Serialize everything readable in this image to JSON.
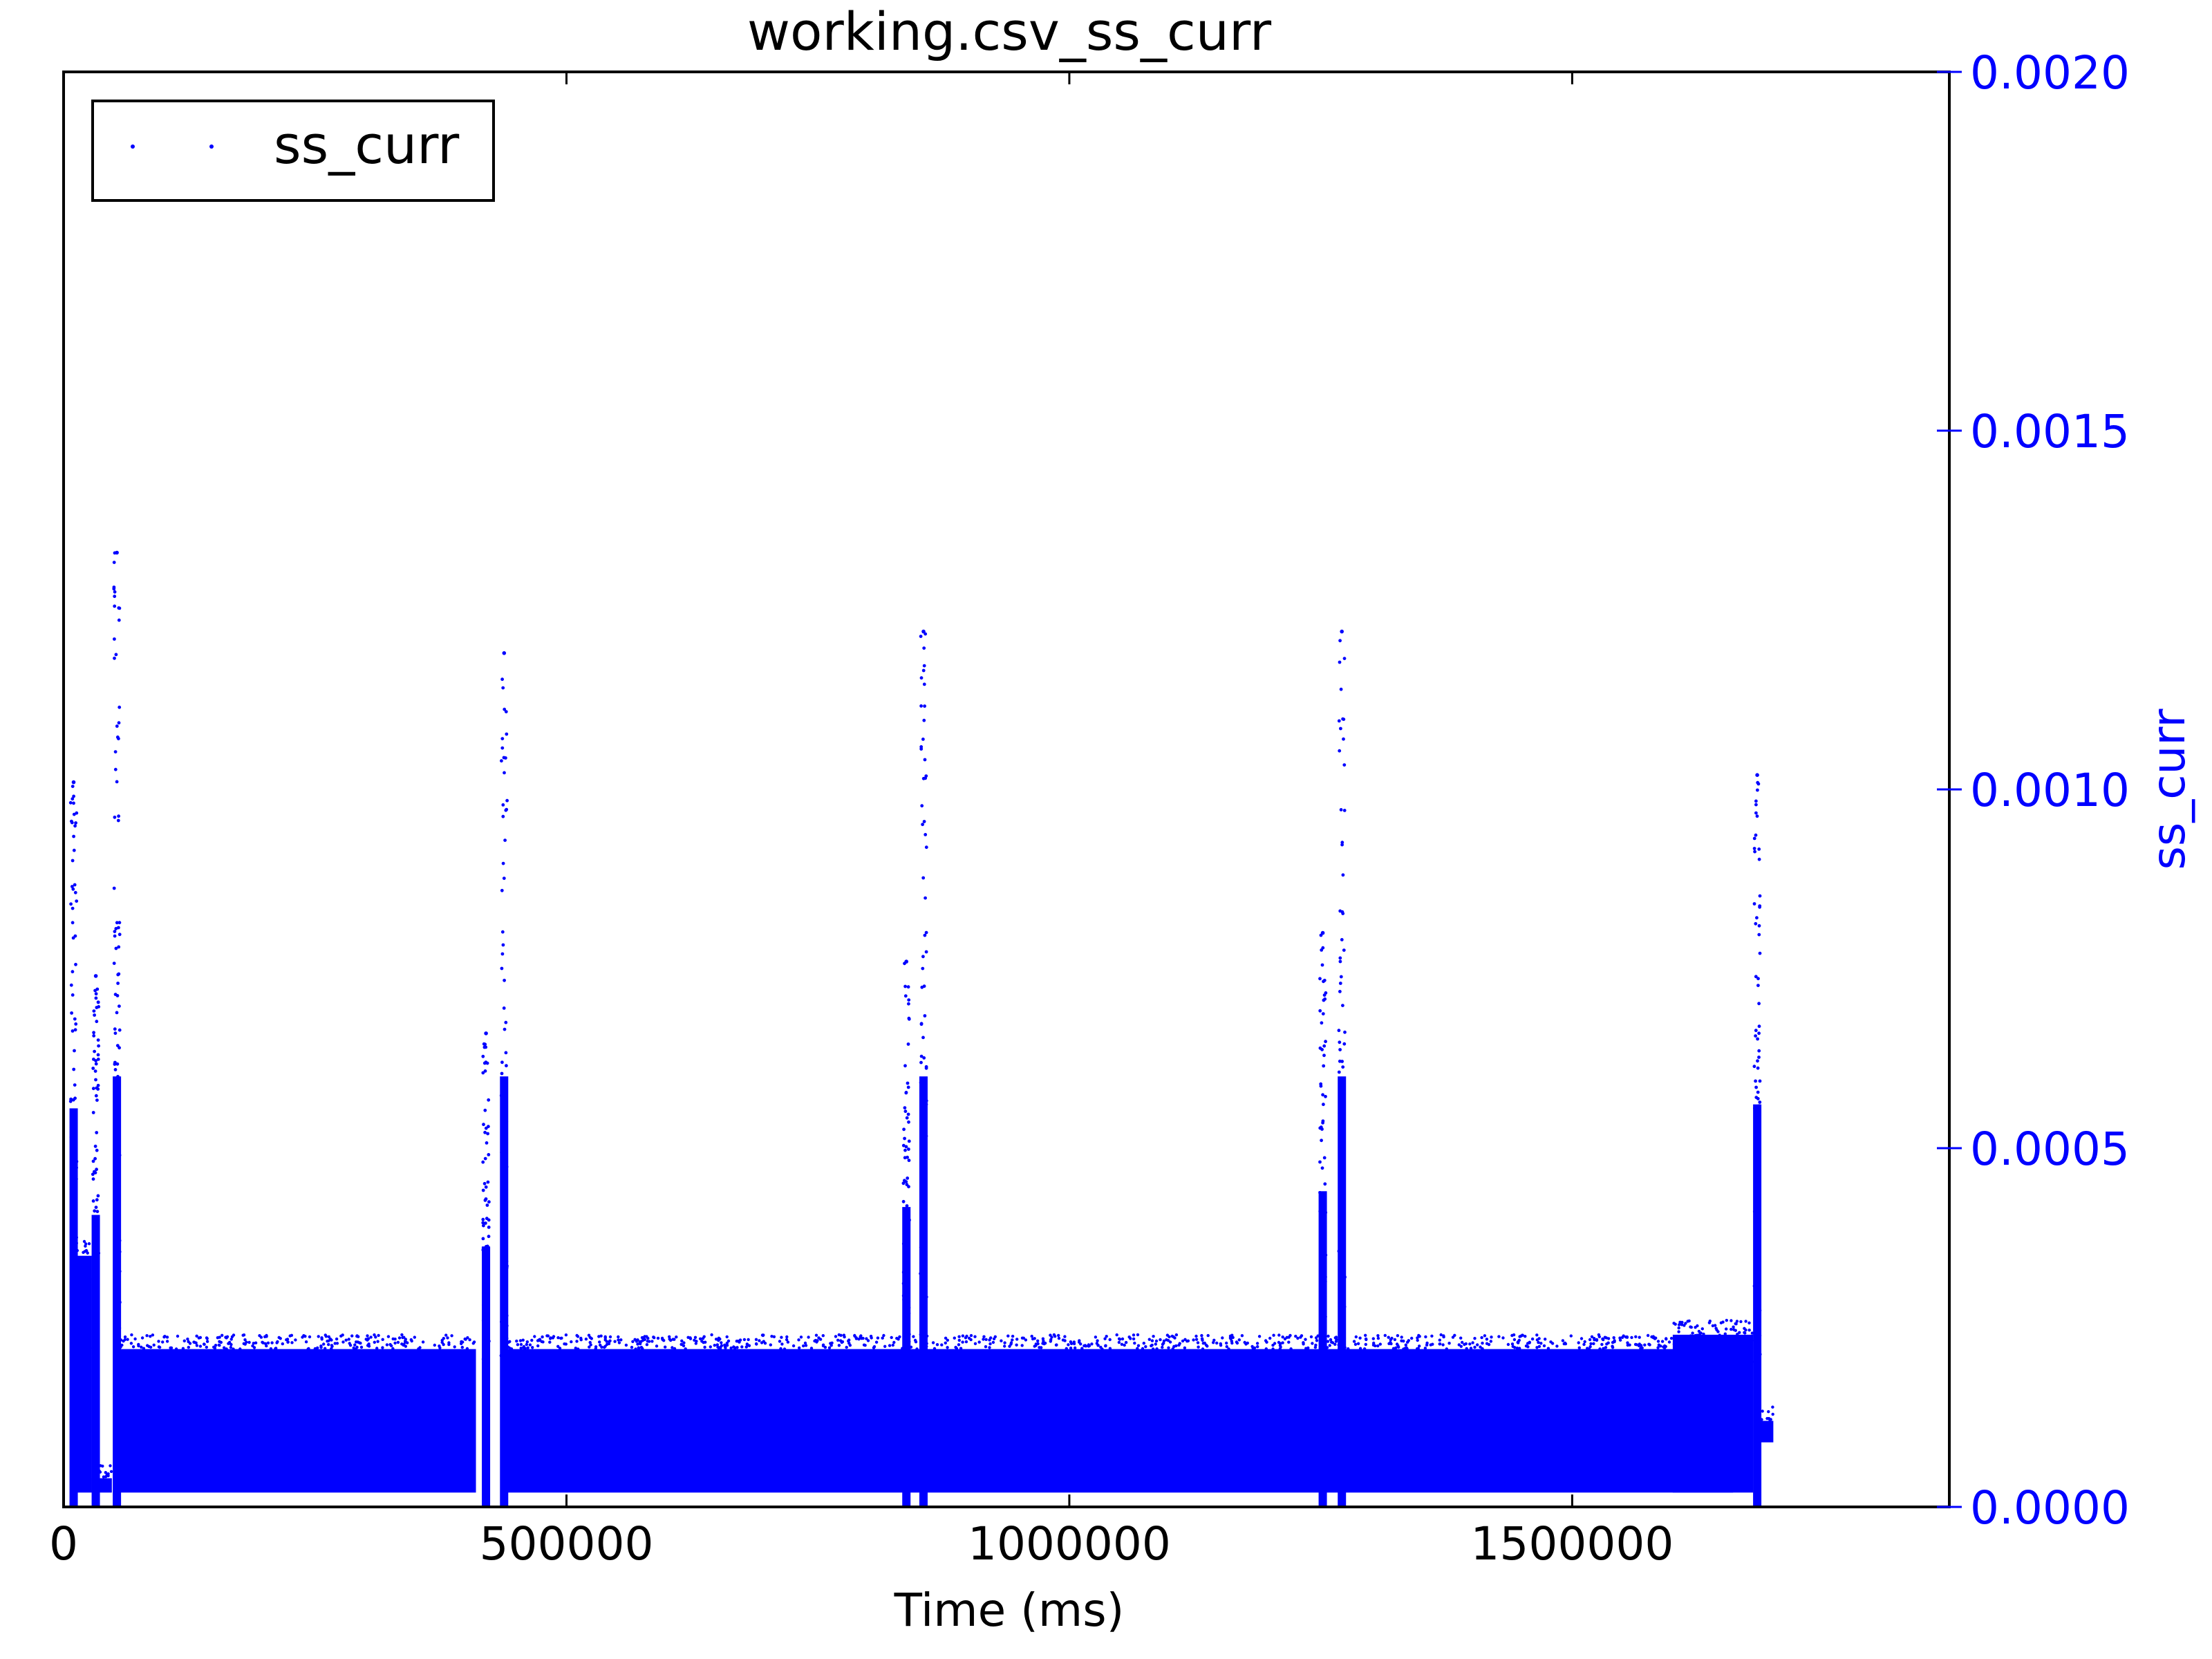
{
  "chart_data": {
    "type": "scatter",
    "title": "working.csv_ss_curr",
    "xlabel": "Time (ms)",
    "ylabel": "ss_curr",
    "xlim": [
      0,
      1875000
    ],
    "ylim": [
      0,
      0.002
    ],
    "x_ticks": [
      0,
      500000,
      1000000,
      1500000
    ],
    "x_tick_labels": [
      "0",
      "500000",
      "1000000",
      "1500000"
    ],
    "y_ticks": [
      0.0,
      0.0005,
      0.001,
      0.0015,
      0.002
    ],
    "y_tick_labels": [
      "0.0000",
      "0.0005",
      "0.0010",
      "0.0015",
      "0.0020"
    ],
    "y_axis_side": "right",
    "grid": false,
    "legend": {
      "position": "top-left",
      "entries": [
        "ss_curr"
      ]
    },
    "colors": {
      "series": "#0000ff",
      "axis_text": "#0000ff",
      "text": "#000000"
    },
    "series": [
      {
        "name": "ss_curr",
        "marker": "point",
        "segments": [
          {
            "x_range": [
              8000,
              28000
            ],
            "y_range": [
              2e-05,
              0.00035
            ]
          },
          {
            "x_range": [
              28000,
              48000
            ],
            "y_range": [
              2e-05,
              4e-05
            ]
          },
          {
            "x_range": [
              52000,
              410000
            ],
            "y_range": [
              2e-05,
              0.00022
            ]
          },
          {
            "x_range": [
              440000,
              1660000
            ],
            "y_range": [
              2e-05,
              0.00022
            ]
          },
          {
            "x_range": [
              1600000,
              1680000
            ],
            "y_range": [
              2e-05,
              0.00024
            ]
          },
          {
            "x_range": [
              1685000,
              1700000
            ],
            "y_range": [
              9e-05,
              0.00012
            ]
          }
        ],
        "spikes": [
          {
            "x": 10000,
            "y": 0.00101
          },
          {
            "x": 32000,
            "y": 0.00074
          },
          {
            "x": 53000,
            "y": 0.00133
          },
          {
            "x": 420000,
            "y": 0.00066
          },
          {
            "x": 438000,
            "y": 0.00119
          },
          {
            "x": 838000,
            "y": 0.00076
          },
          {
            "x": 855000,
            "y": 0.00122
          },
          {
            "x": 1252000,
            "y": 0.0008
          },
          {
            "x": 1271000,
            "y": 0.00122
          },
          {
            "x": 1684000,
            "y": 0.00102
          }
        ]
      }
    ]
  }
}
